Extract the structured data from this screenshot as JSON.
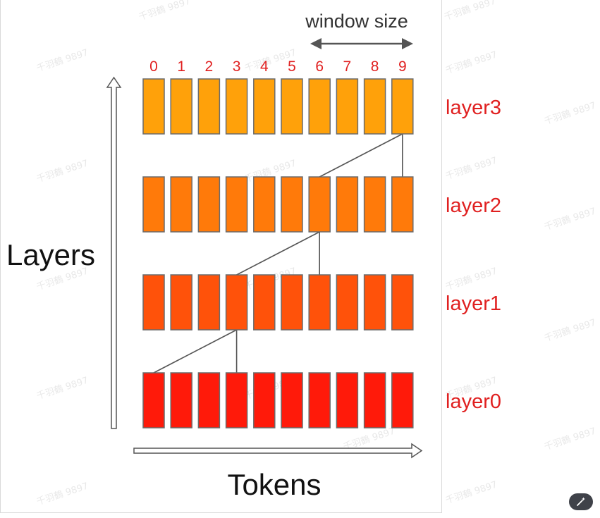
{
  "diagram": {
    "window_label": "window size",
    "token_indices": [
      "0",
      "1",
      "2",
      "3",
      "4",
      "5",
      "6",
      "7",
      "8",
      "9"
    ],
    "layers": [
      {
        "label": "layer3",
        "color": "#ffa10a"
      },
      {
        "label": "layer2",
        "color": "#ff7a0a"
      },
      {
        "label": "layer1",
        "color": "#ff520a"
      },
      {
        "label": "layer0",
        "color": "#ff1a0a"
      }
    ],
    "y_axis_label": "Layers",
    "x_axis_label": "Tokens",
    "label_color": "#e02020",
    "connections": [
      {
        "from_layer": 3,
        "from_token": 9,
        "to_layer": 2,
        "to_tokens": [
          6,
          9
        ]
      },
      {
        "from_layer": 2,
        "from_token": 6,
        "to_layer": 1,
        "to_tokens": [
          3,
          6
        ]
      },
      {
        "from_layer": 1,
        "from_token": 3,
        "to_layer": 0,
        "to_tokens": [
          0,
          3
        ]
      }
    ]
  },
  "watermark": "千羽鶴 9897",
  "toolbar": {
    "edit_icon": "magic-wand-icon"
  }
}
